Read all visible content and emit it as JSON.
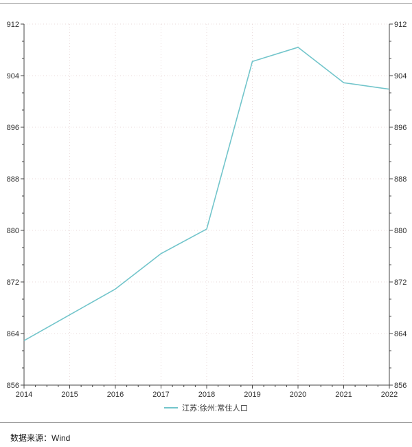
{
  "colors": {
    "line": "#72c5cb",
    "grid": "#e9dada",
    "axis": "#444444",
    "tick_text": "#2e2e2e",
    "divider": "#9b9b9b",
    "background": "#ffffff"
  },
  "legend": {
    "items": [
      {
        "label": "江苏:徐州:常住人口",
        "color": "#72c5cb"
      }
    ]
  },
  "source": {
    "label": "数据来源：Wind"
  },
  "chart_data": {
    "type": "line",
    "title": "",
    "xlabel": "",
    "ylabel": "",
    "x": [
      2014,
      2015,
      2016,
      2017,
      2018,
      2019,
      2020,
      2021,
      2022
    ],
    "series": [
      {
        "name": "江苏:徐州:常住人口",
        "color": "#72c5cb",
        "values": [
          862.9,
          866.9,
          870.9,
          876.4,
          880.2,
          906.2,
          908.4,
          902.9,
          901.9
        ]
      }
    ],
    "ylim": [
      856,
      912
    ],
    "yticks": [
      912,
      904,
      896,
      888,
      880,
      872,
      864,
      856
    ],
    "y_minor_divisions": 3,
    "x_minor_divisions": 4,
    "grid": "dotted horizontal and vertical at major ticks",
    "legend_position": "bottom-center",
    "dual_y_axis": true,
    "markers": false
  }
}
